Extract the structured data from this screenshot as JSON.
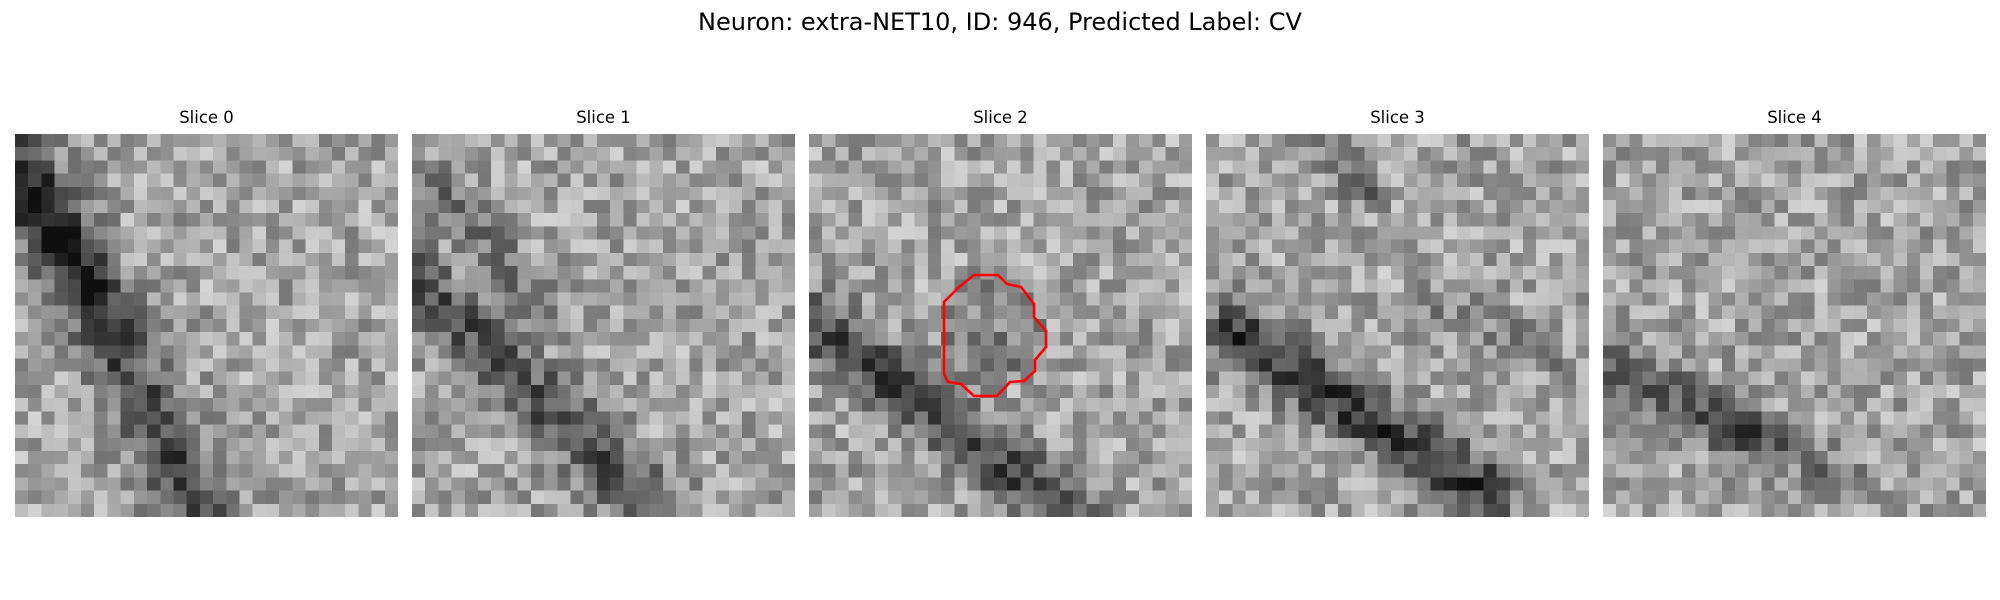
{
  "figure": {
    "title": "Neuron: extra-NET10, ID: 946, Predicted Label: CV"
  },
  "slices": [
    {
      "label": "Slice 0",
      "seed": 11,
      "has_contour": false
    },
    {
      "label": "Slice 1",
      "seed": 23,
      "has_contour": false
    },
    {
      "label": "Slice 2",
      "seed": 37,
      "has_contour": true
    },
    {
      "label": "Slice 3",
      "seed": 41,
      "has_contour": false
    },
    {
      "label": "Slice 4",
      "seed": 59,
      "has_contour": false
    }
  ],
  "contour": {
    "color": "#ff0000"
  },
  "image": {
    "grid": 29,
    "colormap": "gray"
  }
}
